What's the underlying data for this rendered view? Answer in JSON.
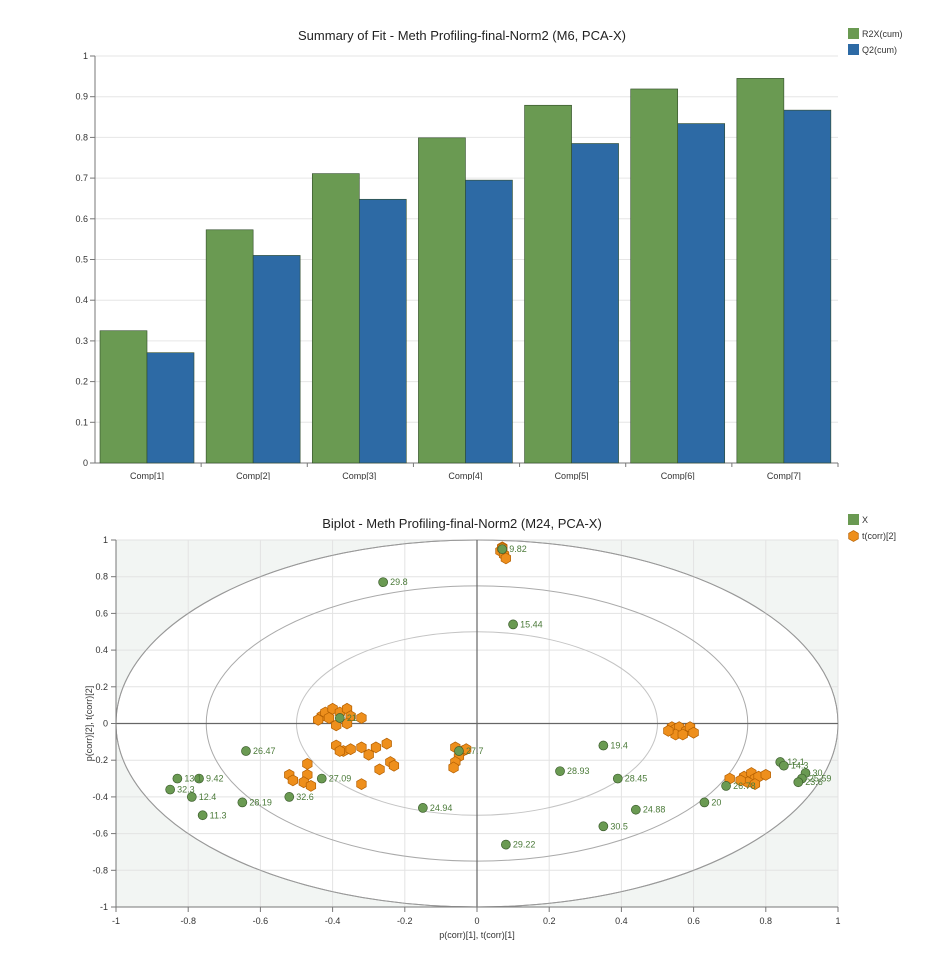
{
  "chart_data": [
    {
      "type": "bar",
      "title": "Summary of Fit - Meth Profiling-final-Norm2 (M6, PCA-X)",
      "categories": [
        "Comp[1]",
        "Comp[2]",
        "Comp[3]",
        "Comp[4]",
        "Comp[5]",
        "Comp[6]",
        "Comp[7]"
      ],
      "series": [
        {
          "name": "R2X(cum)",
          "color": "#6a9a52",
          "values": [
            0.325,
            0.573,
            0.711,
            0.799,
            0.879,
            0.919,
            0.945
          ]
        },
        {
          "name": "Q2(cum)",
          "color": "#2d6aa5",
          "values": [
            0.271,
            0.51,
            0.648,
            0.695,
            0.785,
            0.834,
            0.867
          ]
        }
      ],
      "ylim": [
        0,
        1
      ],
      "yticks": [
        "0",
        "0.1",
        "0.2",
        "0.3",
        "0.4",
        "0.5",
        "0.6",
        "0.7",
        "0.8",
        "0.9",
        "1"
      ],
      "legend": "top-right",
      "grid": true
    },
    {
      "type": "scatter",
      "title": "Biplot - Meth Profiling-final-Norm2 (M24, PCA-X)",
      "xlabel": "p(corr)[1], t(corr)[1]",
      "ylabel": "p(corr)[2], t(corr)[2]",
      "xlim": [
        -1,
        1
      ],
      "ylim": [
        -1,
        1
      ],
      "xticks": [
        "-1",
        "-0.8",
        "-0.6",
        "-0.4",
        "-0.2",
        "0",
        "0.2",
        "0.4",
        "0.6",
        "0.8",
        "1"
      ],
      "yticks": [
        "-1",
        "-0.8",
        "-0.6",
        "-0.4",
        "-0.2",
        "0",
        "0.2",
        "0.4",
        "0.6",
        "0.8",
        "1"
      ],
      "legend": "top-right",
      "grid": true,
      "ellipses": [
        1.0,
        0.75,
        0.5
      ],
      "series": [
        {
          "name": "X",
          "color": "#6a9a52",
          "points": [
            {
              "x": -0.26,
              "y": 0.77,
              "label": "29.8"
            },
            {
              "x": 0.1,
              "y": 0.54,
              "label": "15.44"
            },
            {
              "x": -0.38,
              "y": 0.03,
              "label": "21"
            },
            {
              "x": -0.64,
              "y": -0.15,
              "label": "26.47"
            },
            {
              "x": -0.43,
              "y": -0.3,
              "label": "27.09"
            },
            {
              "x": -0.52,
              "y": -0.4,
              "label": "32.6"
            },
            {
              "x": -0.65,
              "y": -0.43,
              "label": "28.19"
            },
            {
              "x": -0.76,
              "y": -0.5,
              "label": "11.3"
            },
            {
              "x": -0.79,
              "y": -0.4,
              "label": "12.4"
            },
            {
              "x": -0.77,
              "y": -0.3,
              "label": "9.42"
            },
            {
              "x": -0.83,
              "y": -0.3,
              "label": "13.1"
            },
            {
              "x": -0.85,
              "y": -0.36,
              "label": "32.3"
            },
            {
              "x": -0.15,
              "y": -0.46,
              "label": "24.94"
            },
            {
              "x": -0.05,
              "y": -0.15,
              "label": "27.7"
            },
            {
              "x": 0.08,
              "y": -0.66,
              "label": "29.22"
            },
            {
              "x": 0.23,
              "y": -0.26,
              "label": "28.93"
            },
            {
              "x": 0.35,
              "y": -0.12,
              "label": "19.4"
            },
            {
              "x": 0.39,
              "y": -0.3,
              "label": "28.45"
            },
            {
              "x": 0.44,
              "y": -0.47,
              "label": "24.88"
            },
            {
              "x": 0.35,
              "y": -0.56,
              "label": "30.5"
            },
            {
              "x": 0.63,
              "y": -0.43,
              "label": "20"
            },
            {
              "x": 0.69,
              "y": -0.34,
              "label": "26.78"
            },
            {
              "x": 0.84,
              "y": -0.21,
              "label": "12.1"
            },
            {
              "x": 0.85,
              "y": -0.23,
              "label": "14.3"
            },
            {
              "x": 0.91,
              "y": -0.27,
              "label": "30"
            },
            {
              "x": 0.9,
              "y": -0.3,
              "label": "25.59"
            },
            {
              "x": 0.89,
              "y": -0.32,
              "label": "23.6"
            },
            {
              "x": 0.07,
              "y": 0.95,
              "label": "9.82"
            }
          ]
        },
        {
          "name": "t(corr)[2]",
          "color": "#ee8f1c",
          "points": [
            {
              "x": 0.07,
              "y": 0.96
            },
            {
              "x": 0.065,
              "y": 0.94
            },
            {
              "x": 0.075,
              "y": 0.92
            },
            {
              "x": 0.08,
              "y": 0.9
            },
            {
              "x": 0.07,
              "y": 0.955
            },
            {
              "x": -0.43,
              "y": 0.04
            },
            {
              "x": -0.42,
              "y": 0.06
            },
            {
              "x": -0.4,
              "y": 0.08
            },
            {
              "x": -0.38,
              "y": 0.06
            },
            {
              "x": -0.36,
              "y": 0.08
            },
            {
              "x": -0.35,
              "y": 0.04
            },
            {
              "x": -0.32,
              "y": 0.03
            },
            {
              "x": -0.44,
              "y": 0.02
            },
            {
              "x": -0.39,
              "y": -0.01
            },
            {
              "x": -0.36,
              "y": 0.0
            },
            {
              "x": -0.41,
              "y": 0.03
            },
            {
              "x": -0.39,
              "y": -0.12
            },
            {
              "x": -0.37,
              "y": -0.15
            },
            {
              "x": -0.35,
              "y": -0.14
            },
            {
              "x": -0.32,
              "y": -0.13
            },
            {
              "x": -0.3,
              "y": -0.17
            },
            {
              "x": -0.28,
              "y": -0.13
            },
            {
              "x": -0.25,
              "y": -0.11
            },
            {
              "x": -0.24,
              "y": -0.21
            },
            {
              "x": -0.23,
              "y": -0.23
            },
            {
              "x": -0.27,
              "y": -0.25
            },
            {
              "x": -0.32,
              "y": -0.33
            },
            {
              "x": -0.38,
              "y": -0.15
            },
            {
              "x": -0.47,
              "y": -0.22
            },
            {
              "x": -0.47,
              "y": -0.28
            },
            {
              "x": -0.48,
              "y": -0.32
            },
            {
              "x": -0.46,
              "y": -0.34
            },
            {
              "x": -0.52,
              "y": -0.28
            },
            {
              "x": -0.51,
              "y": -0.31
            },
            {
              "x": -0.06,
              "y": -0.13
            },
            {
              "x": -0.04,
              "y": -0.15
            },
            {
              "x": -0.05,
              "y": -0.18
            },
            {
              "x": -0.06,
              "y": -0.21
            },
            {
              "x": -0.065,
              "y": -0.24
            },
            {
              "x": -0.03,
              "y": -0.14
            },
            {
              "x": 0.54,
              "y": -0.02
            },
            {
              "x": 0.55,
              "y": -0.03
            },
            {
              "x": 0.56,
              "y": -0.02
            },
            {
              "x": 0.55,
              "y": -0.06
            },
            {
              "x": 0.58,
              "y": -0.04
            },
            {
              "x": 0.59,
              "y": -0.02
            },
            {
              "x": 0.6,
              "y": -0.05
            },
            {
              "x": 0.53,
              "y": -0.04
            },
            {
              "x": 0.57,
              "y": -0.06
            },
            {
              "x": 0.7,
              "y": -0.3
            },
            {
              "x": 0.74,
              "y": -0.29
            },
            {
              "x": 0.76,
              "y": -0.27
            },
            {
              "x": 0.77,
              "y": -0.3
            },
            {
              "x": 0.78,
              "y": -0.29
            },
            {
              "x": 0.8,
              "y": -0.28
            },
            {
              "x": 0.75,
              "y": -0.32
            },
            {
              "x": 0.73,
              "y": -0.31
            },
            {
              "x": 0.77,
              "y": -0.33
            }
          ]
        }
      ]
    }
  ]
}
